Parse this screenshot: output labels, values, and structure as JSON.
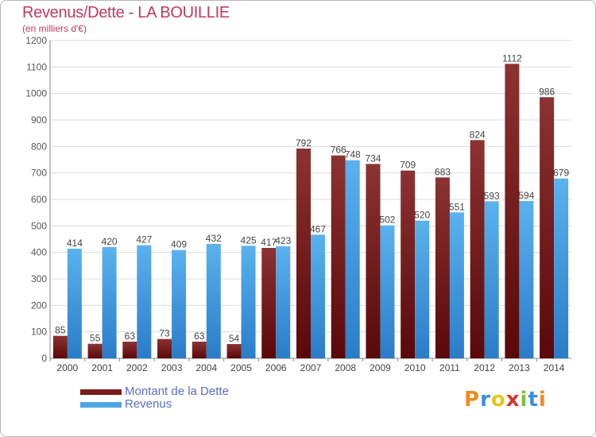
{
  "header": {
    "title": "Revenus/Dette - LA BOUILLIE",
    "subtitle": "(en milliers d'€)"
  },
  "chart_data": {
    "type": "bar",
    "title": "Revenus/Dette - LA BOUILLIE",
    "subtitle": "(en milliers d'€)",
    "xlabel": "",
    "ylabel": "",
    "ylim": [
      0,
      1200
    ],
    "yticks": [
      0,
      100,
      200,
      300,
      400,
      500,
      600,
      700,
      800,
      900,
      1000,
      1100,
      1200
    ],
    "grid": true,
    "legend_position": "bottom-left",
    "categories": [
      "2000",
      "2001",
      "2002",
      "2003",
      "2004",
      "2005",
      "2006",
      "2007",
      "2008",
      "2009",
      "2010",
      "2011",
      "2012",
      "2013",
      "2014"
    ],
    "series": [
      {
        "name": "Montant de la Dette",
        "color": "#7a1c1c",
        "values": [
          85,
          55,
          63,
          73,
          63,
          54,
          417,
          792,
          766,
          734,
          709,
          683,
          824,
          1112,
          986
        ]
      },
      {
        "name": "Revenus",
        "color": "#4ea6e6",
        "values": [
          414,
          420,
          427,
          409,
          432,
          425,
          423,
          467,
          748,
          502,
          520,
          551,
          593,
          594,
          679
        ]
      }
    ]
  },
  "legend": {
    "items": [
      {
        "label": "Montant de la Dette",
        "color": "#7a1c1c"
      },
      {
        "label": "Revenus",
        "color": "#4ea6e6"
      }
    ]
  },
  "logo": {
    "letters": [
      "P",
      "r",
      "o",
      "x",
      "i",
      "t",
      "i"
    ],
    "colors": [
      "#f08a1e",
      "#3c8fd8",
      "#e8c51c",
      "#d8352a",
      "#7cc242",
      "#3c8fd8",
      "#f08a1e"
    ]
  }
}
